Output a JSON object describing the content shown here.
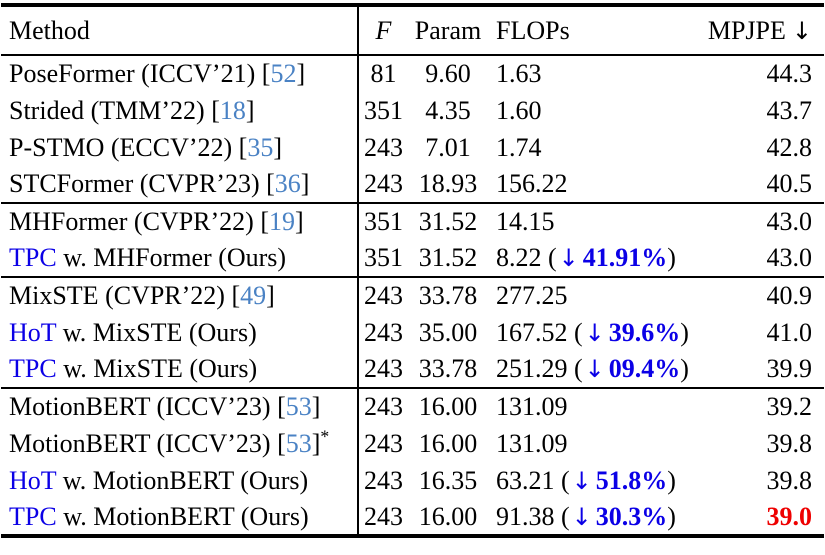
{
  "colors": {
    "citation_blue": "#4a82c4",
    "ours_blue": "#0b00e6",
    "best_red": "#ee0000",
    "text_black": "#000000"
  },
  "header": {
    "method": "Method",
    "frames": "F",
    "param": "Param",
    "flops": "FLOPs",
    "mpjpe": "MPJPE",
    "down_arrow": "↓"
  },
  "glyphs": {
    "drop_arrow": "↓",
    "bracket_open": "[",
    "bracket_close": "]"
  },
  "sections": [
    {
      "rows": [
        {
          "ours": null,
          "method": "PoseFormer (ICCV’21) ",
          "cite": "52",
          "star": "",
          "f": "81",
          "param": "9.60",
          "flops": "1.63",
          "drop": null,
          "mpjpe": "44.3",
          "best": false
        },
        {
          "ours": null,
          "method": "Strided (TMM’22) ",
          "cite": "18",
          "star": "",
          "f": "351",
          "param": "4.35",
          "flops": "1.60",
          "drop": null,
          "mpjpe": "43.7",
          "best": false
        },
        {
          "ours": null,
          "method": "P-STMO (ECCV’22) ",
          "cite": "35",
          "star": "",
          "f": "243",
          "param": "7.01",
          "flops": "1.74",
          "drop": null,
          "mpjpe": "42.8",
          "best": false
        },
        {
          "ours": null,
          "method": "STCFormer (CVPR’23) ",
          "cite": "36",
          "star": "",
          "f": "243",
          "param": "18.93",
          "flops": "156.22",
          "drop": null,
          "mpjpe": "40.5",
          "best": false
        }
      ]
    },
    {
      "rows": [
        {
          "ours": null,
          "method": "MHFormer (CVPR’22) ",
          "cite": "19",
          "star": "",
          "f": "351",
          "param": "31.52",
          "flops": "14.15",
          "drop": null,
          "mpjpe": "43.0",
          "best": false
        },
        {
          "ours": "TPC",
          "method": " w. MHFormer (Ours)",
          "cite": null,
          "star": "",
          "f": "351",
          "param": "31.52",
          "flops": "8.22",
          "drop": "41.91%",
          "mpjpe": "43.0",
          "best": false
        }
      ]
    },
    {
      "rows": [
        {
          "ours": null,
          "method": "MixSTE (CVPR’22) ",
          "cite": "49",
          "star": "",
          "f": "243",
          "param": "33.78",
          "flops": "277.25",
          "drop": null,
          "mpjpe": "40.9",
          "best": false
        },
        {
          "ours": "HoT",
          "method": " w. MixSTE (Ours)",
          "cite": null,
          "star": "",
          "f": "243",
          "param": "35.00",
          "flops": "167.52",
          "drop": "39.6%",
          "mpjpe": "41.0",
          "best": false
        },
        {
          "ours": "TPC",
          "method": " w. MixSTE (Ours)",
          "cite": null,
          "star": "",
          "f": "243",
          "param": "33.78",
          "flops": "251.29",
          "drop": "09.4%",
          "mpjpe": "39.9",
          "best": false
        }
      ]
    },
    {
      "rows": [
        {
          "ours": null,
          "method": "MotionBERT (ICCV’23) ",
          "cite": "53",
          "star": "",
          "f": "243",
          "param": "16.00",
          "flops": "131.09",
          "drop": null,
          "mpjpe": "39.2",
          "best": false
        },
        {
          "ours": null,
          "method": "MotionBERT (ICCV’23) ",
          "cite": "53",
          "star": "*",
          "f": "243",
          "param": "16.00",
          "flops": "131.09",
          "drop": null,
          "mpjpe": "39.8",
          "best": false
        },
        {
          "ours": "HoT",
          "method": " w. MotionBERT (Ours)",
          "cite": null,
          "star": "",
          "f": "243",
          "param": "16.35",
          "flops": "63.21",
          "drop": "51.8%",
          "mpjpe": "39.8",
          "best": false
        },
        {
          "ours": "TPC",
          "method": " w. MotionBERT (Ours)",
          "cite": null,
          "star": "",
          "f": "243",
          "param": "16.00",
          "flops": "91.38",
          "drop": "30.3%",
          "mpjpe": "39.0",
          "best": true
        }
      ]
    }
  ]
}
